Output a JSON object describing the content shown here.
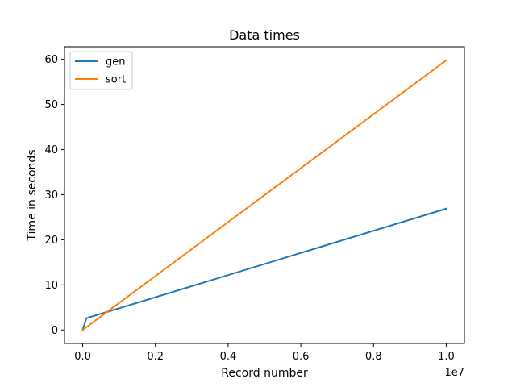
{
  "chart_data": {
    "type": "line",
    "title": "Data times",
    "xlabel": "Record number",
    "ylabel": "Time in seconds",
    "x_offset_text": "1e7",
    "xlim": [
      -0.05,
      1.05
    ],
    "ylim": [
      -2.99,
      62.8
    ],
    "xticks": [
      0.0,
      0.2,
      0.4,
      0.6,
      0.8,
      1.0
    ],
    "xtick_labels": [
      "0.0",
      "0.2",
      "0.4",
      "0.6",
      "0.8",
      "1.0"
    ],
    "yticks": [
      0,
      10,
      20,
      30,
      40,
      50,
      60
    ],
    "ytick_labels": [
      "0",
      "10",
      "20",
      "30",
      "40",
      "50",
      "60"
    ],
    "grid": false,
    "legend_position": "upper-left",
    "series": [
      {
        "name": "gen",
        "color": "#1f77b4",
        "x": [
          0.0,
          0.01,
          1.0
        ],
        "y": [
          0.0,
          2.6,
          26.9
        ]
      },
      {
        "name": "sort",
        "color": "#ff7f0e",
        "x": [
          0.0,
          1.0
        ],
        "y": [
          0.0,
          59.8
        ]
      }
    ]
  }
}
